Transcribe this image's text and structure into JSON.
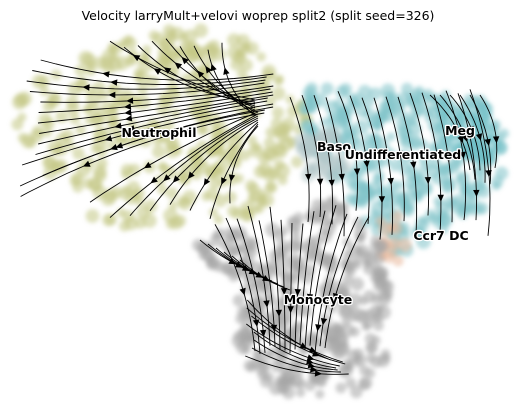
{
  "chart_data": {
    "type": "scatter",
    "subtype": "velocity-streamplot",
    "title": "Velocity larryMult+velovi woprep split2 (split seed=326)",
    "xlabel": "",
    "ylabel": "",
    "axes_visible": false,
    "grid": false,
    "legend": "on data",
    "clusters": [
      {
        "name": "Neutrophil",
        "color": "#c2c784"
      },
      {
        "name": "Baso",
        "color": "#b3c6c8"
      },
      {
        "name": "Meg",
        "color": "#6fbfc6"
      },
      {
        "name": "Undifferentiated",
        "color": "#80c3c9"
      },
      {
        "name": "Ccr7 DC",
        "color": "#e9b89a"
      },
      {
        "name": "Monocyte",
        "color": "#a6a6a6"
      }
    ]
  }
}
